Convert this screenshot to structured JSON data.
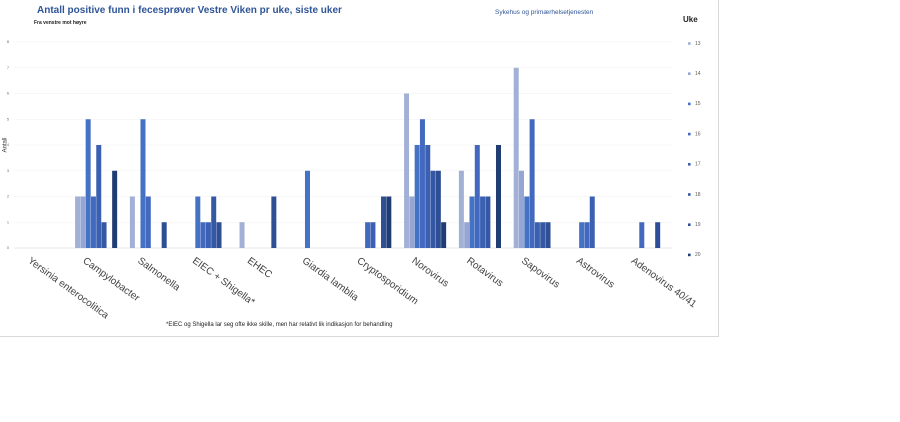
{
  "chart_data": {
    "type": "bar",
    "title": "Antall positive funn i fecesprøver Vestre Viken pr uke, siste uker",
    "subtitle": "Fra venstre mot høyre",
    "sector_label": "Sykehus og primærhelsetjenesten",
    "ylabel": "Antall",
    "ylim": [
      0,
      8
    ],
    "yticks": [
      "0",
      "1",
      "2",
      "3",
      "4",
      "5",
      "6",
      "7",
      "8"
    ],
    "legend_title": "Uke",
    "legend_position": "right",
    "footnote": "*EIEC og Shigella lar seg ofte ikke skille, men har relativt lik indikasjon for behandling",
    "categories": [
      "Yersinia enterocolitica",
      "Campylobacter",
      "Salmonella",
      "EIEC + Shigella*",
      "EHEC",
      "Giardia lamblia",
      "Cryptosporidium",
      "Norovirus",
      "Rotavirus",
      "Sapovirus",
      "Astrovirus",
      "Adenovirus 40/41"
    ],
    "series": [
      {
        "name": "13",
        "color": "#a3b0d6",
        "values": [
          0,
          2,
          2,
          0,
          1,
          0,
          0,
          6,
          3,
          7,
          0,
          0
        ]
      },
      {
        "name": "14",
        "color": "#95a6d4",
        "values": [
          0,
          2,
          0,
          0,
          0,
          0,
          0,
          2,
          1,
          3,
          0,
          0
        ]
      },
      {
        "name": "15",
        "color": "#4472c4",
        "values": [
          0,
          5,
          5,
          2,
          0,
          3,
          0,
          4,
          2,
          2,
          1,
          0
        ]
      },
      {
        "name": "16",
        "color": "#4269bf",
        "values": [
          0,
          2,
          2,
          1,
          0,
          0,
          1,
          5,
          4,
          5,
          1,
          1
        ]
      },
      {
        "name": "17",
        "color": "#3b60b2",
        "values": [
          0,
          4,
          0,
          1,
          0,
          0,
          1,
          4,
          2,
          1,
          2,
          0
        ]
      },
      {
        "name": "18",
        "color": "#3458a4",
        "values": [
          0,
          1,
          0,
          2,
          0,
          0,
          0,
          3,
          2,
          1,
          0,
          0
        ]
      },
      {
        "name": "19",
        "color": "#2e4f94",
        "values": [
          0,
          0,
          1,
          1,
          2,
          0,
          2,
          3,
          0,
          1,
          0,
          1
        ]
      },
      {
        "name": "20",
        "color": "#1f3c73",
        "values": [
          0,
          3,
          0,
          0,
          0,
          0,
          2,
          1,
          4,
          0,
          0,
          0
        ]
      }
    ]
  }
}
